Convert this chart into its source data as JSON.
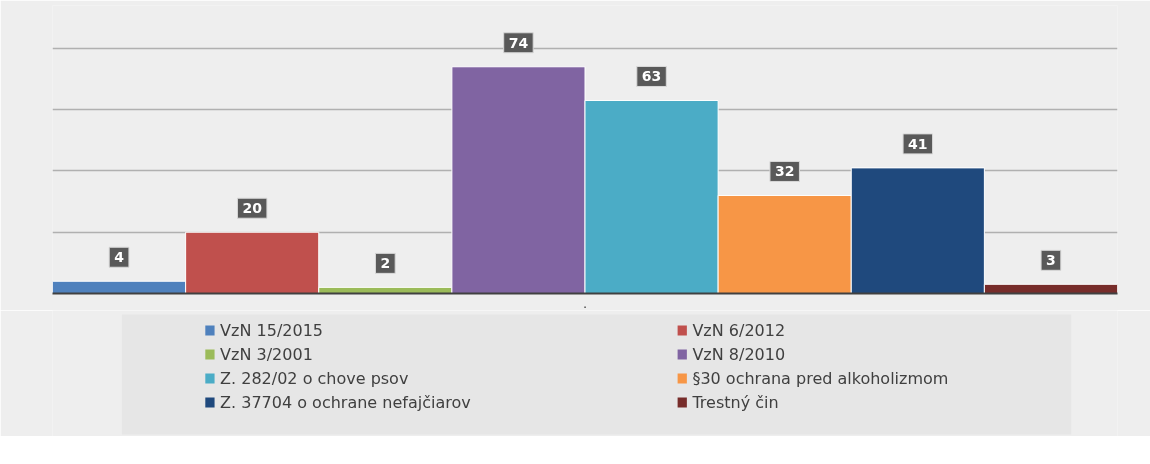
{
  "chart_data": {
    "type": "bar",
    "xlabel": ".",
    "categories": [
      null
    ],
    "series": [
      {
        "name": "VzN 15/2015",
        "color": "#4f81bd",
        "values": [
          4
        ]
      },
      {
        "name": "VzN 6/2012",
        "color": "#c0504d",
        "values": [
          20
        ]
      },
      {
        "name": "VzN 3/2001",
        "color": "#9bbb59",
        "values": [
          2
        ]
      },
      {
        "name": "VzN 8/2010",
        "color": "#8064a2",
        "values": [
          74
        ]
      },
      {
        "name": "Z. 282/02 o chove psov",
        "color": "#4bacc6",
        "values": [
          63
        ]
      },
      {
        "name": "§30 ochrana pred alkoholizmom",
        "color": "#f79646",
        "values": [
          32
        ]
      },
      {
        "name": "Z. 37704 o ochrane nefajčiarov",
        "color": "#1f497d",
        "values": [
          41
        ]
      },
      {
        "name": "Trestný čin",
        "color": "#772c2a",
        "values": [
          3
        ]
      }
    ],
    "ylim": [
      0,
      94
    ],
    "yticks": [
      {
        "value": 0,
        "label": null
      },
      {
        "value": 20,
        "label": null
      },
      {
        "value": 40,
        "label": null
      },
      {
        "value": 60,
        "label": null
      },
      {
        "value": 80,
        "label": null
      }
    ],
    "grid": "y",
    "tick_labels": false,
    "legend": "bottom",
    "data_labels": true
  }
}
